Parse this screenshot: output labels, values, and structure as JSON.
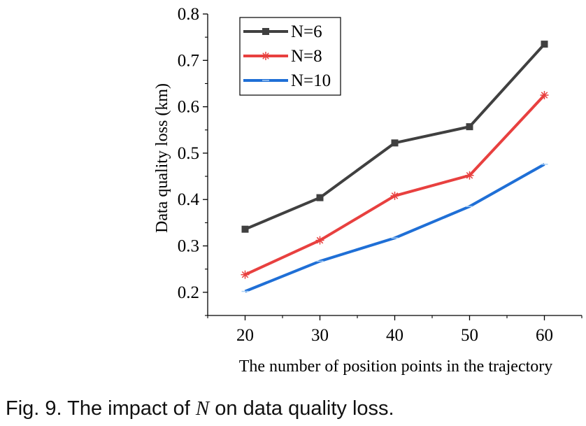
{
  "chart_data": {
    "type": "line",
    "x": [
      20,
      30,
      40,
      50,
      60
    ],
    "series": [
      {
        "name": "N=6",
        "color": "#404040",
        "marker": "square",
        "values": [
          0.336,
          0.404,
          0.522,
          0.557,
          0.735
        ]
      },
      {
        "name": "N=8",
        "color": "#e8403f",
        "marker": "asterisk",
        "values": [
          0.238,
          0.312,
          0.408,
          0.452,
          0.625
        ]
      },
      {
        "name": "N=10",
        "color": "#1f6fd6",
        "marker": "dash",
        "values": [
          0.202,
          0.267,
          0.317,
          0.385,
          0.476
        ]
      }
    ],
    "xlabel": "The number of position points in the trajectory",
    "ylabel": "Data quality loss (km)",
    "xlim": [
      15,
      65
    ],
    "ylim": [
      0.15,
      0.8
    ],
    "xticks": [
      20,
      30,
      40,
      50,
      60
    ],
    "xtick_labels": [
      "20",
      "30",
      "40",
      "50",
      "60"
    ],
    "yticks": [
      0.2,
      0.3,
      0.4,
      0.5,
      0.6,
      0.7,
      0.8
    ],
    "ytick_labels": [
      "0.2",
      "0.3",
      "0.4",
      "0.5",
      "0.6",
      "0.7",
      "0.8"
    ],
    "grid": false,
    "legend_position": "top-left"
  },
  "caption": {
    "prefix": "Fig. 9. The impact of ",
    "variable": "N",
    "suffix": " on data quality loss."
  }
}
